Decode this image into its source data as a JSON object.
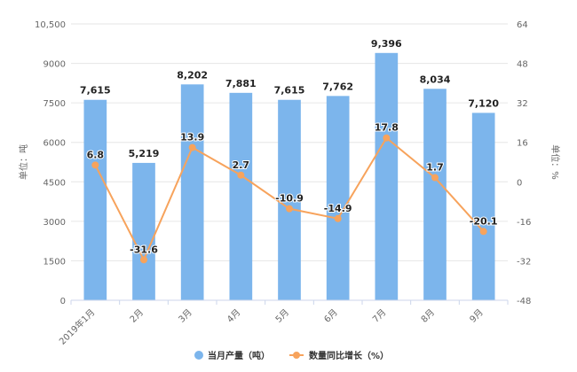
{
  "chart_data": {
    "type": "bar",
    "categories": [
      "2019年1月",
      "2月",
      "3月",
      "4月",
      "5月",
      "6月",
      "7月",
      "8月",
      "9月"
    ],
    "series": [
      {
        "name": "当月产量（吨）",
        "type": "bar",
        "axis": "left",
        "color": "#7cb5ec",
        "values": [
          7615,
          5219,
          8202,
          7881,
          7615,
          7762,
          9396,
          8034,
          7120
        ],
        "labels": [
          "7,615",
          "5,219",
          "8,202",
          "7,881",
          "7,615",
          "7,762",
          "9,396",
          "8,034",
          "7,120"
        ]
      },
      {
        "name": "数量同比增长（%）",
        "type": "line",
        "axis": "right",
        "color": "#f7a35c",
        "values": [
          6.8,
          -31.6,
          13.9,
          2.7,
          -10.9,
          -14.9,
          17.8,
          1.7,
          -20.1
        ],
        "labels": [
          "6.8",
          "-31.6",
          "13.9",
          "2.7",
          "-10.9",
          "-14.9",
          "17.8",
          "1.7",
          "-20.1"
        ]
      }
    ],
    "ylabel": "单位：吨",
    "y2label": "单位：%",
    "ylim": [
      0,
      10500
    ],
    "y2lim": [
      -48,
      64
    ],
    "yticks": [
      0,
      1500,
      3000,
      4500,
      6000,
      7500,
      9000,
      10500
    ],
    "yticklabels": [
      "0",
      "1500",
      "3000",
      "4500",
      "6000",
      "7500",
      "9000",
      "10,500"
    ],
    "y2ticks": [
      -48,
      -32,
      -16,
      0,
      16,
      32,
      48,
      64
    ],
    "y2ticklabels": [
      "-48",
      "-32",
      "-16",
      "0",
      "16",
      "32",
      "48",
      "64"
    ],
    "grid": true,
    "legend_position": "bottom-center"
  }
}
